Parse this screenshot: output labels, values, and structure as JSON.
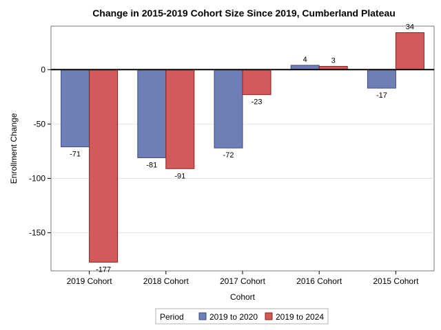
{
  "chart_data": {
    "type": "bar",
    "title": "Change in 2015-2019 Cohort Size Since 2019, Cumberland Plateau",
    "xlabel": "Cohort",
    "ylabel": "Enrollment Change",
    "categories": [
      "2019 Cohort",
      "2018 Cohort",
      "2017 Cohort",
      "2016 Cohort",
      "2015 Cohort"
    ],
    "series": [
      {
        "name": "2019 to 2020",
        "values": [
          -71,
          -81,
          -72,
          4,
          -17
        ],
        "color": "#6f7fb5"
      },
      {
        "name": "2019 to 2024",
        "values": [
          -177,
          -91,
          -23,
          3,
          34
        ],
        "color": "#d25a5a"
      }
    ],
    "ylim": [
      -185,
      40
    ],
    "yticks": [
      0,
      -50,
      -100,
      -150
    ],
    "ytick_labels": [
      "0",
      "-50",
      "-100",
      "-150"
    ],
    "grid": true,
    "zero_line": true,
    "legend": {
      "title": "Period",
      "position": "bottom-center"
    }
  }
}
